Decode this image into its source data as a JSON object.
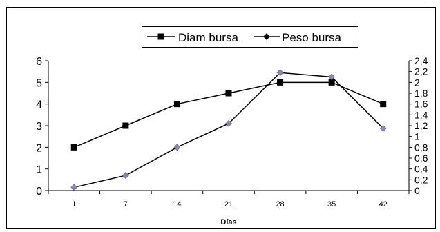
{
  "chart_data": {
    "type": "line",
    "categories": [
      "1",
      "7",
      "14",
      "21",
      "28",
      "35",
      "42"
    ],
    "xlabel": "Días",
    "series": [
      {
        "name": "Diam bursa",
        "axis": "left",
        "marker": "square",
        "values": [
          2,
          3,
          4,
          4.5,
          5,
          5,
          4
        ]
      },
      {
        "name": "Peso bursa",
        "axis": "right",
        "marker": "diamond",
        "values": [
          0.06,
          0.28,
          0.8,
          1.24,
          2.18,
          2.1,
          1.15
        ]
      }
    ],
    "y_left": {
      "range": [
        0,
        6
      ],
      "ticks": [
        "0",
        "1",
        "2",
        "3",
        "4",
        "5",
        "6"
      ]
    },
    "y_right": {
      "range": [
        0,
        2.4
      ],
      "ticks": [
        "0",
        "0,2",
        "0,4",
        "0,6",
        "0,8",
        "1",
        "1,2",
        "1,4",
        "1,6",
        "1,8",
        "2",
        "2,2",
        "2,4"
      ]
    },
    "grid": false,
    "legend_position": "top-center",
    "colors": {
      "diam_line": "#000000",
      "diam_marker": "#000000",
      "peso_line": "#000000",
      "peso_marker": "#8b88b0"
    }
  }
}
